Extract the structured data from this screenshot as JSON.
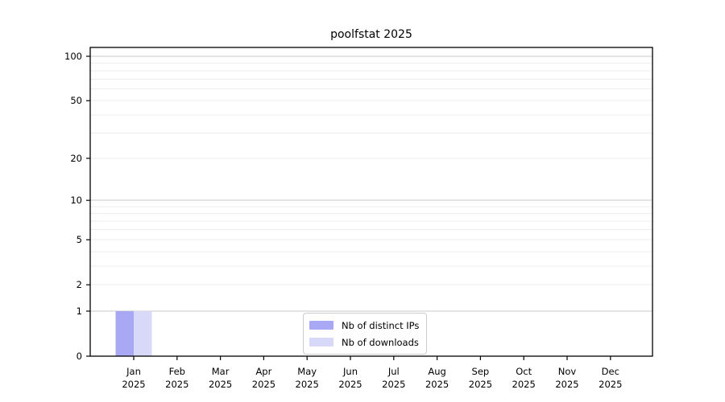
{
  "chart_data": {
    "type": "bar",
    "title": "poolfstat 2025",
    "yscale": "log1p",
    "ylim": [
      0,
      114.7
    ],
    "grid": true,
    "legend_position": "lower center",
    "categories": [
      {
        "month": "Jan",
        "year": "2025"
      },
      {
        "month": "Feb",
        "year": "2025"
      },
      {
        "month": "Mar",
        "year": "2025"
      },
      {
        "month": "Apr",
        "year": "2025"
      },
      {
        "month": "May",
        "year": "2025"
      },
      {
        "month": "Jun",
        "year": "2025"
      },
      {
        "month": "Jul",
        "year": "2025"
      },
      {
        "month": "Aug",
        "year": "2025"
      },
      {
        "month": "Sep",
        "year": "2025"
      },
      {
        "month": "Oct",
        "year": "2025"
      },
      {
        "month": "Nov",
        "year": "2025"
      },
      {
        "month": "Dec",
        "year": "2025"
      }
    ],
    "series": [
      {
        "name": "Nb of distinct IPs",
        "color": "#a8a8f5",
        "values": [
          1,
          0,
          0,
          0,
          0,
          0,
          0,
          0,
          0,
          0,
          0,
          0
        ]
      },
      {
        "name": "Nb of downloads",
        "color": "#d8d8f8",
        "values": [
          1,
          0,
          0,
          0,
          0,
          0,
          0,
          0,
          0,
          0,
          0,
          0
        ]
      }
    ],
    "y_ticks": [
      0,
      1,
      2,
      5,
      10,
      20,
      50,
      100
    ],
    "y_major_gridlines": [
      1,
      10,
      100
    ],
    "y_minor_gridlines": [
      2,
      3,
      4,
      5,
      6,
      7,
      8,
      9,
      20,
      30,
      40,
      50,
      60,
      70,
      80,
      90
    ],
    "colors": {
      "grid_major": "#c8c8c8",
      "grid_minor": "#ececec",
      "axis": "#000000",
      "text": "#000000"
    }
  }
}
